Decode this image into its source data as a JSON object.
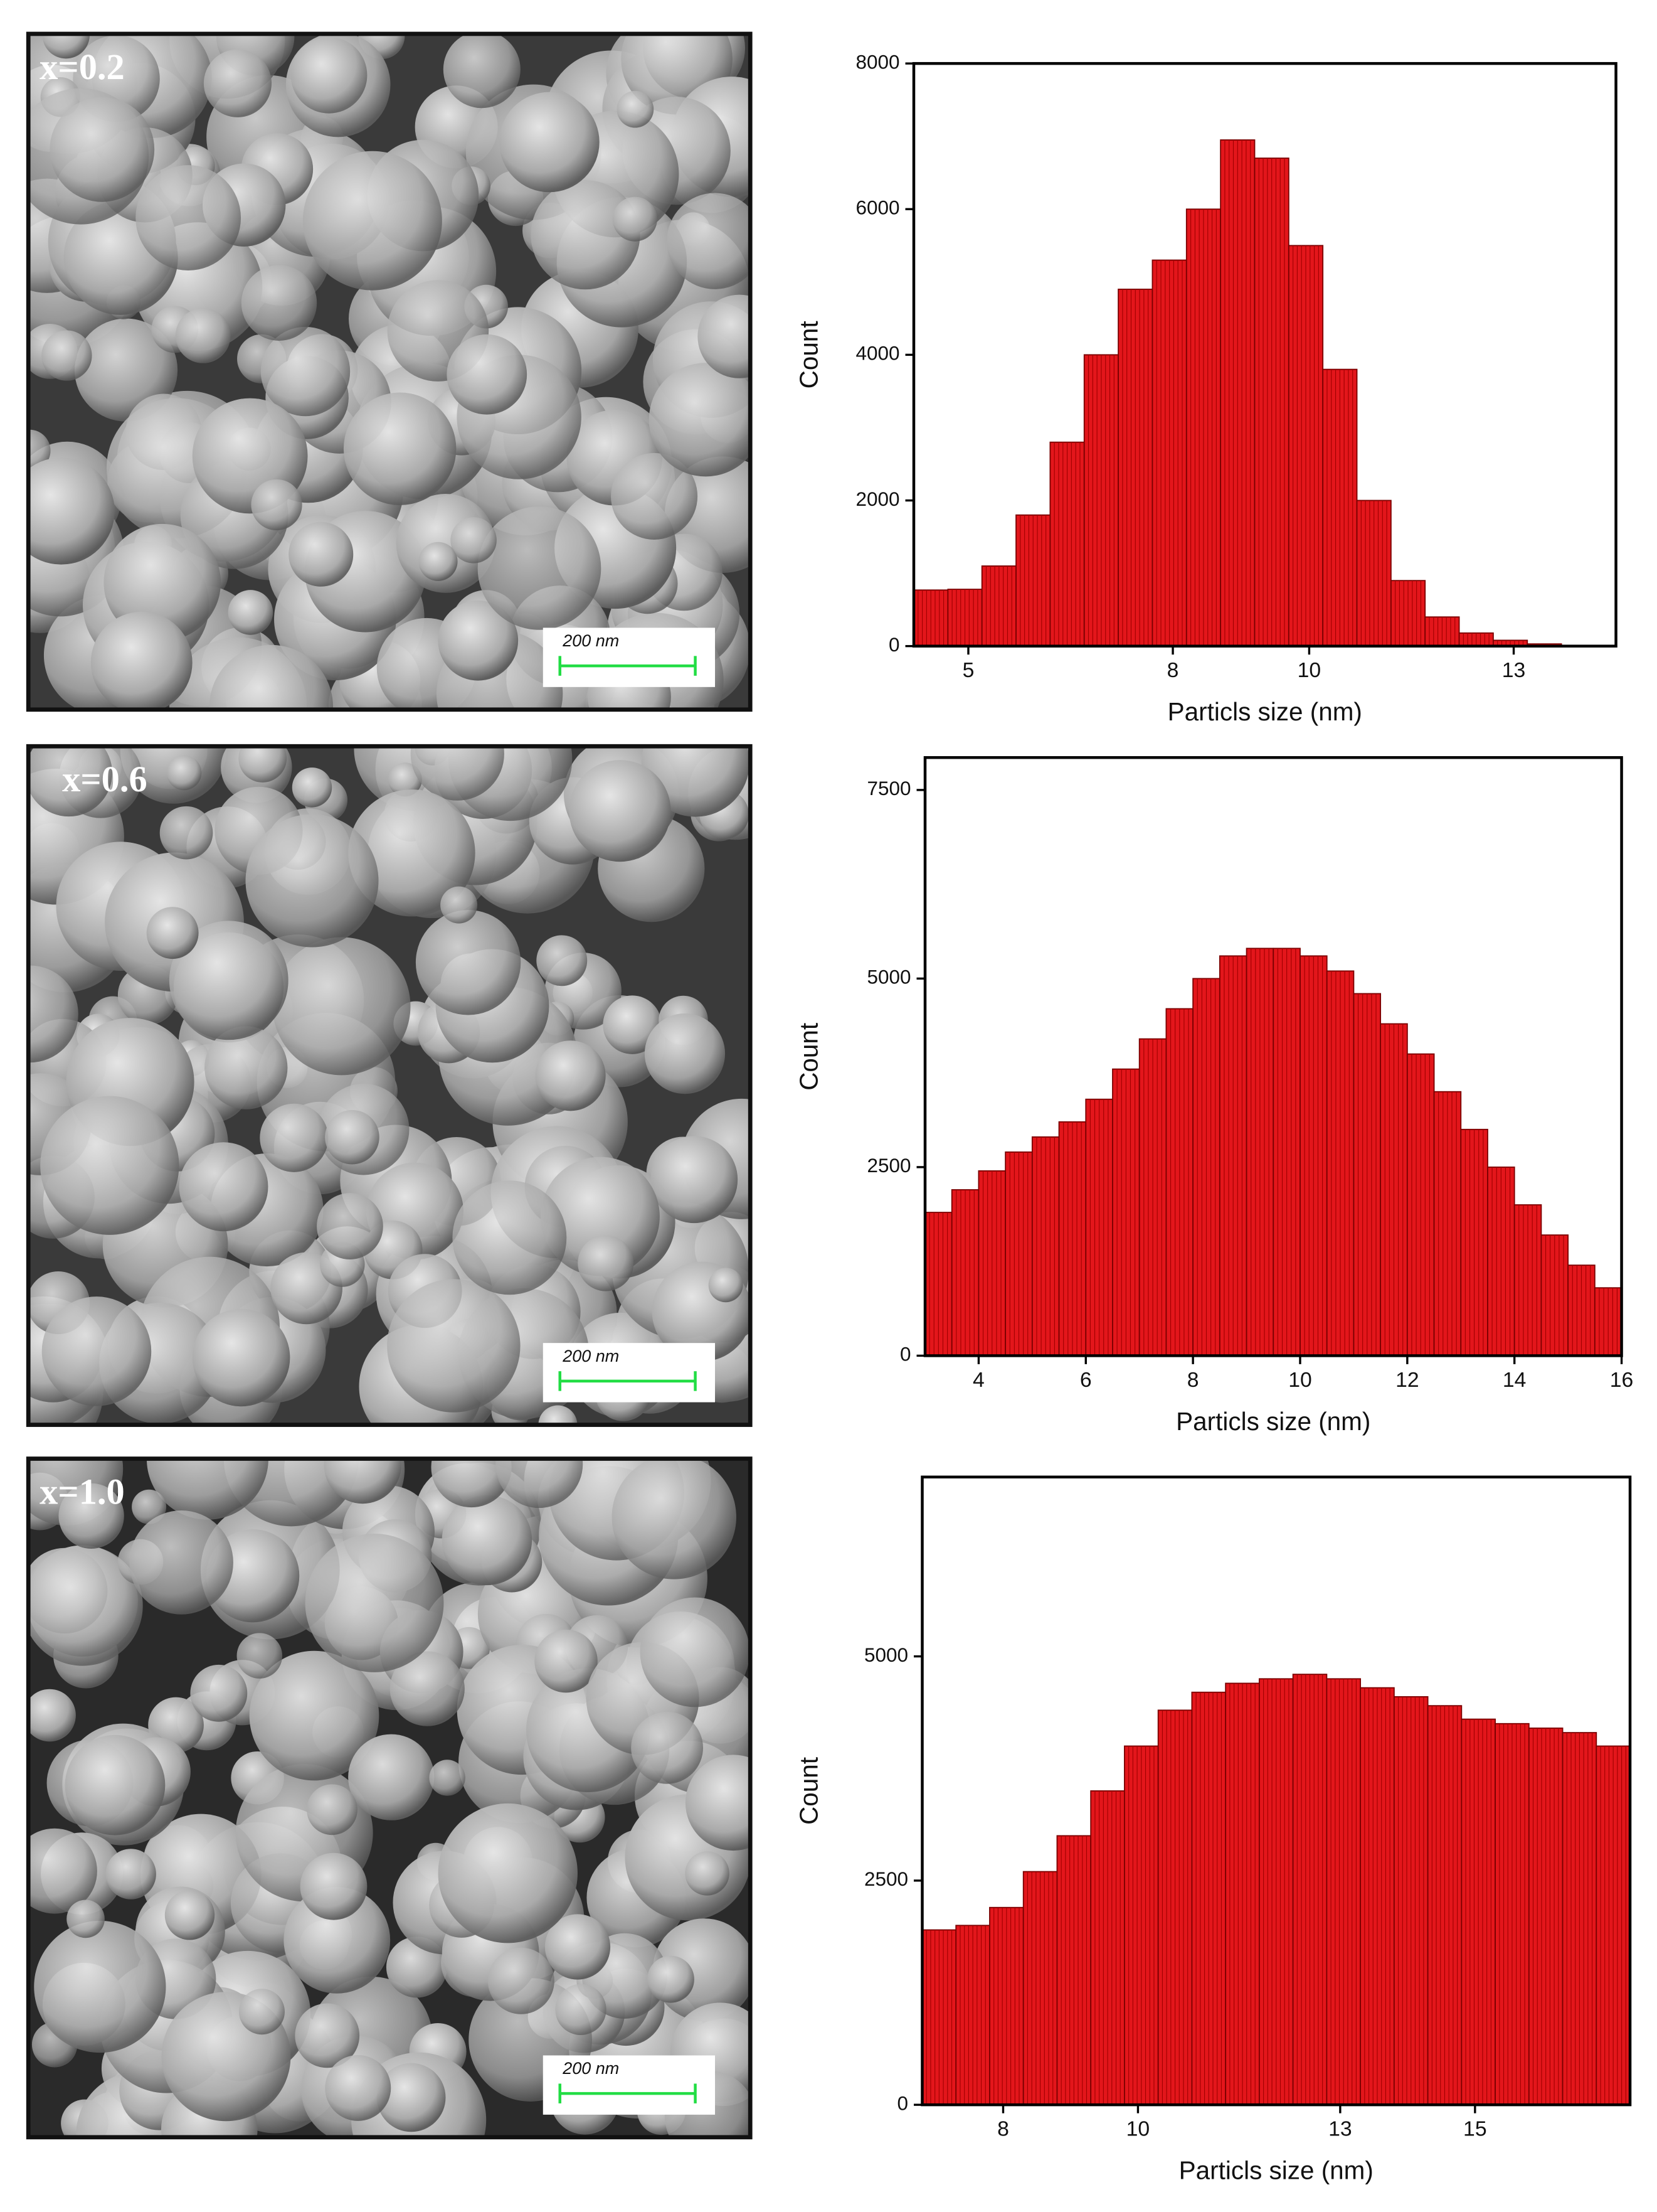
{
  "images": [
    {
      "label": "x=0.2",
      "scale_bar": "200 nm"
    },
    {
      "label": "x=0.6",
      "scale_bar": "200 nm"
    },
    {
      "label": "x=1.0",
      "scale_bar": "200 nm"
    }
  ],
  "chart_data": [
    {
      "type": "histogram",
      "xlabel": "Particls size (nm)",
      "ylabel": "Count",
      "color": "#e3161b",
      "bins": [
        4.2,
        4.7,
        5.2,
        5.7,
        6.2,
        6.7,
        7.2,
        7.7,
        8.2,
        8.7,
        9.2,
        9.7,
        10.2,
        10.7,
        11.2,
        11.7,
        12.2,
        12.7,
        13.2,
        13.7,
        14.2
      ],
      "values": [
        770,
        780,
        1100,
        1800,
        2800,
        4000,
        4900,
        5300,
        6000,
        6950,
        6700,
        5500,
        3800,
        2000,
        900,
        400,
        180,
        80,
        30,
        10
      ],
      "xlim": [
        4.2,
        14.5
      ],
      "xticks": [
        5,
        8,
        10,
        13
      ],
      "ylim": [
        0,
        8000
      ],
      "yticks": [
        0,
        2000,
        4000,
        6000,
        8000
      ]
    },
    {
      "type": "histogram",
      "xlabel": "Particls size (nm)",
      "ylabel": "Count",
      "color": "#e3161b",
      "bins": [
        3,
        3.5,
        4,
        4.5,
        5,
        5.5,
        6,
        6.5,
        7,
        7.5,
        8,
        8.5,
        9,
        9.5,
        10,
        10.5,
        11,
        11.5,
        12,
        12.5,
        13,
        13.5,
        14,
        14.5,
        15,
        15.5,
        16
      ],
      "values": [
        1900,
        2200,
        2450,
        2700,
        2900,
        3100,
        3400,
        3800,
        4200,
        4600,
        5000,
        5300,
        5400,
        5400,
        5300,
        5100,
        4800,
        4400,
        4000,
        3500,
        3000,
        2500,
        2000,
        1600,
        1200,
        900
      ],
      "xlim": [
        3,
        16
      ],
      "xticks": [
        4,
        6,
        8,
        10,
        12,
        14,
        16
      ],
      "ylim": [
        0,
        7930
      ],
      "yticks": [
        0,
        2500,
        5000,
        7500
      ]
    },
    {
      "type": "histogram",
      "xlabel": "Particls size (nm)",
      "ylabel": "Count",
      "color": "#e3161b",
      "bins": [
        6.8,
        7.3,
        7.8,
        8.3,
        8.8,
        9.3,
        9.8,
        10.3,
        10.8,
        11.3,
        11.8,
        12.3,
        12.8,
        13.3,
        13.8,
        14.3,
        14.8,
        15.3,
        15.8,
        16.3,
        16.8,
        17.3
      ],
      "values": [
        1950,
        2000,
        2200,
        2600,
        3000,
        3500,
        4000,
        4400,
        4600,
        4700,
        4750,
        4800,
        4750,
        4650,
        4550,
        4450,
        4300,
        4250,
        4200,
        4150,
        4000
      ],
      "xlim": [
        6.8,
        17.3
      ],
      "xticks": [
        8,
        10,
        13,
        15
      ],
      "ylim": [
        0,
        7000
      ],
      "yticks": [
        0,
        2500,
        5000
      ]
    }
  ]
}
